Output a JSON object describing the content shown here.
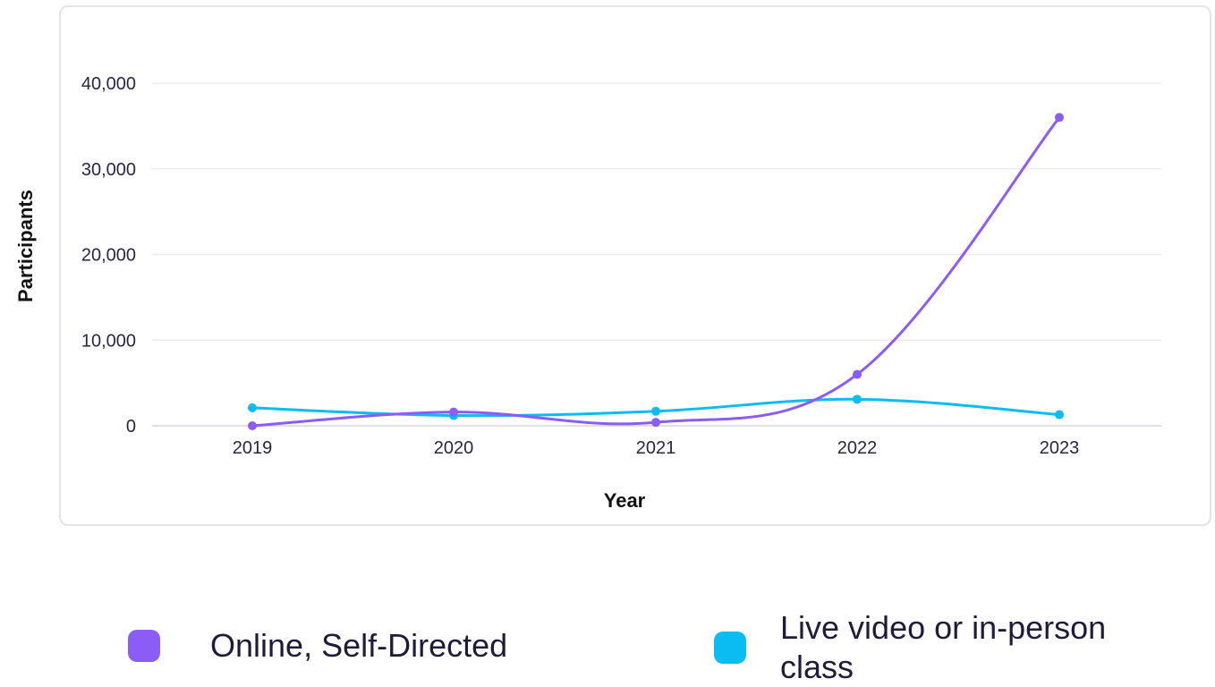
{
  "chart_data": {
    "type": "line",
    "xlabel": "Year",
    "ylabel": "Participants",
    "categories": [
      "2019",
      "2020",
      "2021",
      "2022",
      "2023"
    ],
    "ylim": [
      0,
      40000
    ],
    "yticks": [
      0,
      10000,
      20000,
      30000,
      40000
    ],
    "ytick_labels": [
      "0",
      "10,000",
      "20,000",
      "30,000",
      "40,000"
    ],
    "grid": true,
    "legend_position": "bottom",
    "series": [
      {
        "name": "Online, Self-Directed",
        "color": "#8b5cf6",
        "values": [
          0,
          1600,
          400,
          6000,
          36000
        ]
      },
      {
        "name": "Live video or in-person class",
        "color": "#0bbcf2",
        "values": [
          2100,
          1200,
          1700,
          3100,
          1300
        ]
      }
    ]
  },
  "legend": {
    "items": [
      {
        "label": "Online, Self-Directed",
        "color": "#8b5cf6"
      },
      {
        "label_line1": "Live video or in-person",
        "label_line2": "class",
        "color": "#0bbcf2"
      }
    ]
  }
}
